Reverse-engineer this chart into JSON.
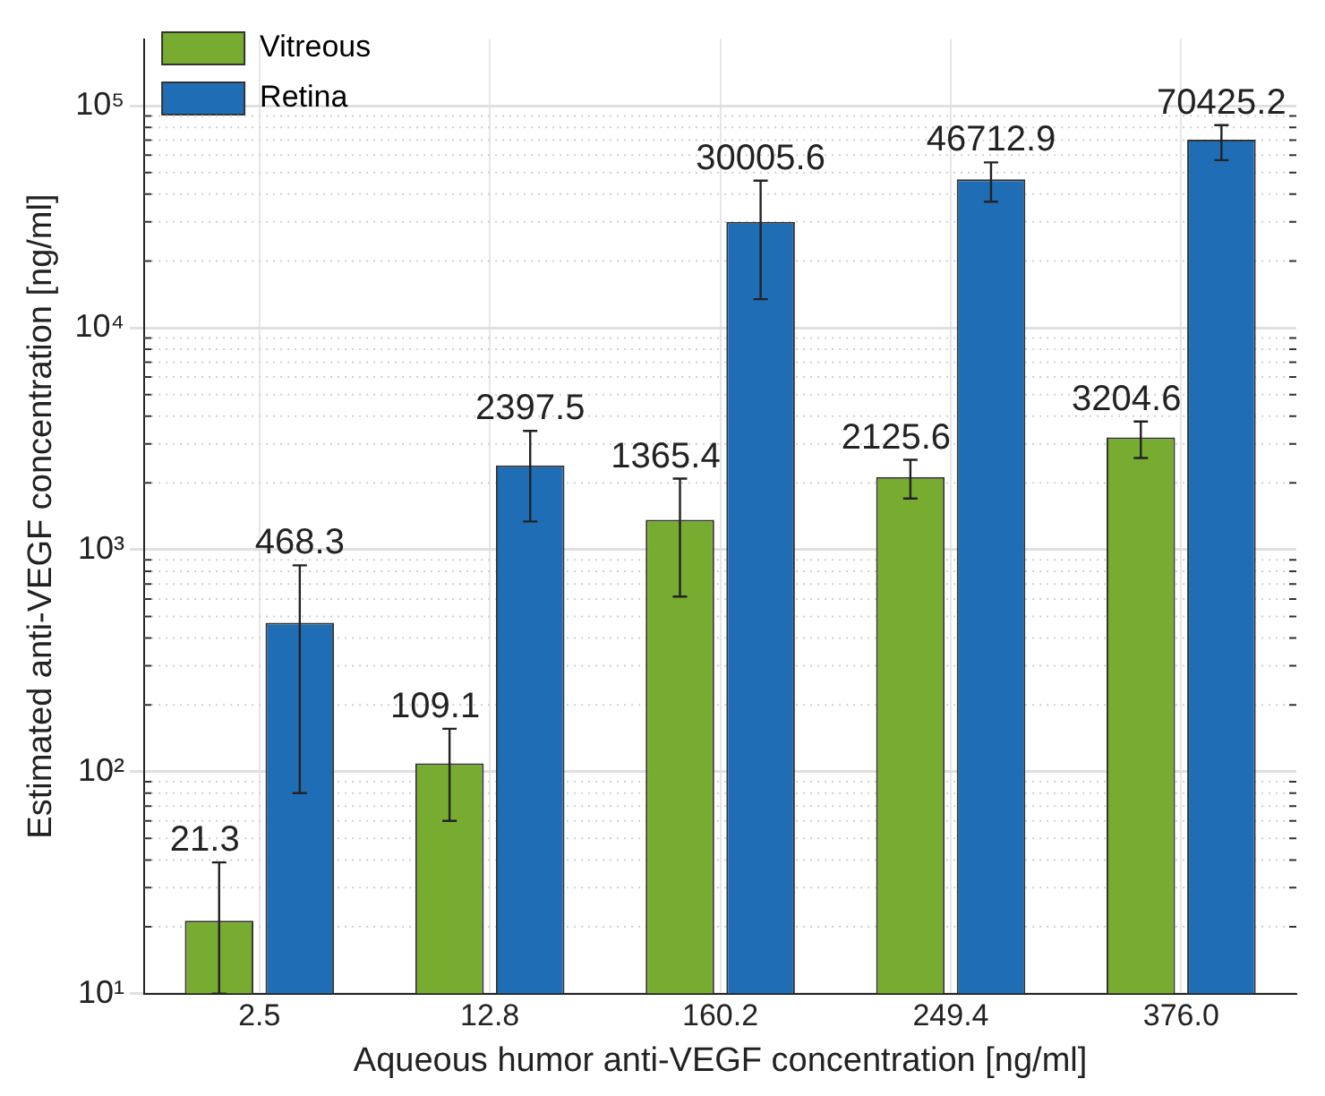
{
  "chart_data": {
    "type": "bar",
    "xlabel": "Aqueous humor anti-VEGF concentration [ng/ml]",
    "ylabel": "Estimated anti-VEGF concentration [ng/ml]",
    "categories": [
      "2.5",
      "12.8",
      "160.2",
      "249.4",
      "376.0"
    ],
    "series": [
      {
        "name": "Vitreous",
        "color": "#77ac30",
        "values": [
          21.3,
          109.1,
          1365.4,
          2125.6,
          3204.6
        ],
        "errors": [
          [
            10,
            39
          ],
          [
            60,
            156
          ],
          [
            615,
            2090
          ],
          [
            1700,
            2540
          ],
          [
            2590,
            3780
          ]
        ]
      },
      {
        "name": "Retina",
        "color": "#1f6eb5",
        "values": [
          468.3,
          2397.5,
          30005.6,
          46712.9,
          70425.2
        ],
        "errors": [
          [
            80,
            850
          ],
          [
            1340,
            3430
          ],
          [
            13450,
            46000
          ],
          [
            37000,
            55600
          ],
          [
            56900,
            81900
          ]
        ]
      }
    ],
    "log": "y",
    "ylim": [
      10,
      200000
    ],
    "yticks": [
      {
        "value": 10,
        "label": "10¹"
      },
      {
        "value": 100,
        "label": "10²"
      },
      {
        "value": 1000,
        "label": "10³"
      },
      {
        "value": 10000,
        "label": "10⁴"
      },
      {
        "value": 100000,
        "label": "10⁵"
      }
    ],
    "grid": true,
    "legend": "top left",
    "data_labels": true
  }
}
